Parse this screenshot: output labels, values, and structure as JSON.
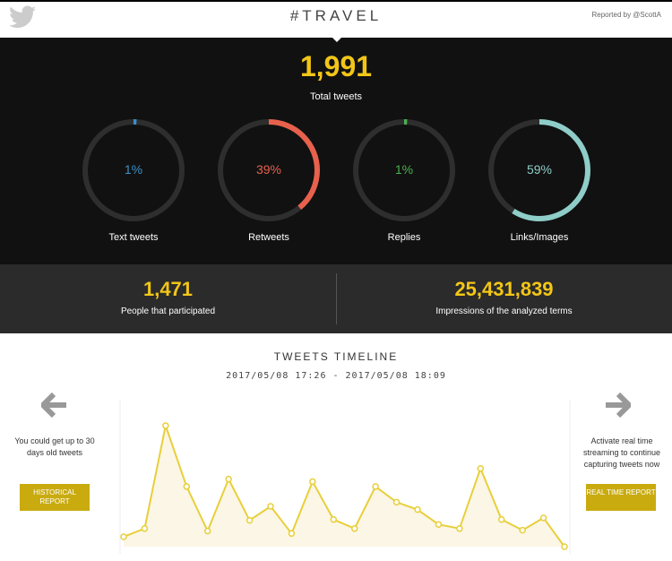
{
  "header": {
    "hashtag": "#TRAVEL",
    "reported_by": "Reported by @ScottA",
    "logo": "twitter-bird-icon"
  },
  "summary": {
    "total": "1,991",
    "total_label": "Total tweets"
  },
  "rings": [
    {
      "pct": 1,
      "label_pct": "1%",
      "label": "Text tweets",
      "color": "#3a8fc7"
    },
    {
      "pct": 39,
      "label_pct": "39%",
      "label": "Retweets",
      "color": "#e8614c"
    },
    {
      "pct": 1,
      "label_pct": "1%",
      "label": "Replies",
      "color": "#4caf50"
    },
    {
      "pct": 59,
      "label_pct": "59%",
      "label": "Links/Images",
      "color": "#8ecdc8"
    }
  ],
  "stats": [
    {
      "value": "1,471",
      "label": "People that participated"
    },
    {
      "value": "25,431,839",
      "label": "Impressions of the analyzed terms"
    }
  ],
  "timeline": {
    "title": "TWEETS TIMELINE",
    "range": "2017/05/08 17:26 - 2017/05/08 18:09",
    "left_text": "You could get up to 30 days old tweets",
    "left_button": "HISTORICAL REPORT",
    "right_text": "Activate real time streaming to continue capturing tweets now",
    "right_button": "REAL TIME REPORT"
  },
  "chart_data": {
    "type": "area",
    "title": "TWEETS TIMELINE",
    "values": [
      12,
      22,
      147,
      73,
      19,
      82,
      32,
      49,
      16,
      79,
      33,
      22,
      73,
      54,
      45,
      27,
      22,
      95,
      33,
      20,
      35,
      0
    ],
    "ylim": [
      0,
      160
    ],
    "color": "#e8cf3a"
  }
}
